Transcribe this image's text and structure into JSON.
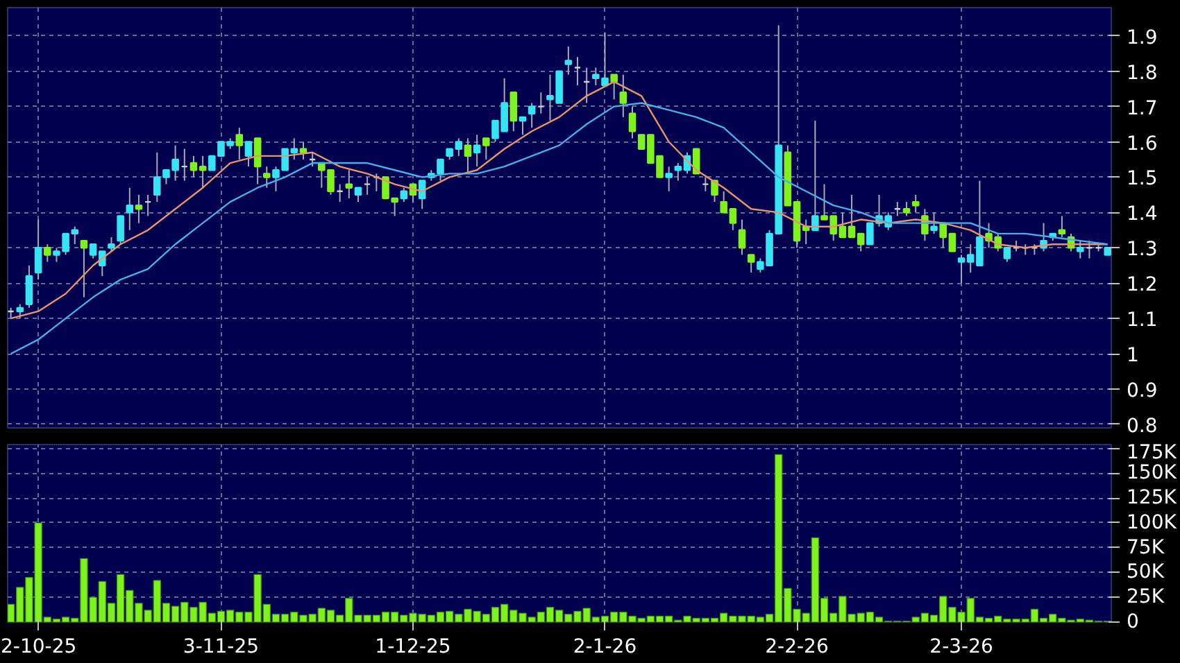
{
  "chart_data": [
    {
      "type": "candlestick",
      "tick_labels": "y",
      "grid": true,
      "ylim": [
        0.79,
        1.98
      ],
      "yticks": [
        0.8,
        0.9,
        1,
        1.1,
        1.2,
        1.3,
        1.4,
        1.5,
        1.6,
        1.7,
        1.8,
        1.9
      ],
      "categories": [
        null,
        null,
        null,
        null,
        null,
        null,
        null,
        null,
        null,
        null,
        null,
        null,
        null,
        null,
        null,
        null,
        null,
        null,
        null,
        null,
        null,
        null,
        null,
        null,
        null,
        null,
        null,
        null,
        null,
        null,
        null,
        null,
        null,
        null,
        null,
        null,
        null,
        null,
        null,
        null,
        null,
        null,
        null,
        null,
        null,
        null,
        null,
        null,
        null,
        null,
        null,
        null,
        null,
        null,
        null,
        null,
        null,
        null,
        null,
        null,
        null,
        null,
        null,
        null,
        null,
        null,
        null,
        null,
        null,
        null,
        null,
        null,
        null,
        null,
        null,
        null,
        null,
        null,
        null,
        null,
        null,
        null,
        null,
        null,
        null,
        null,
        null,
        null,
        null,
        null,
        null,
        null,
        null,
        null,
        null,
        null,
        null,
        null,
        null,
        null,
        null,
        null,
        null,
        null,
        null,
        null,
        null,
        null,
        null,
        null,
        null,
        null,
        null,
        null,
        null,
        null,
        null,
        null,
        null,
        null,
        null
      ],
      "ohlc": [
        [
          1.12,
          1.13,
          1.1,
          1.12
        ],
        [
          1.12,
          1.14,
          1.1,
          1.13
        ],
        [
          1.14,
          1.25,
          1.13,
          1.22
        ],
        [
          1.23,
          1.38,
          1.21,
          1.3
        ],
        [
          1.3,
          1.31,
          1.26,
          1.28
        ],
        [
          1.28,
          1.3,
          1.26,
          1.29
        ],
        [
          1.29,
          1.34,
          1.28,
          1.34
        ],
        [
          1.34,
          1.36,
          1.31,
          1.35
        ],
        [
          1.32,
          1.32,
          1.16,
          1.3
        ],
        [
          1.28,
          1.31,
          1.27,
          1.31
        ],
        [
          1.25,
          1.29,
          1.22,
          1.29
        ],
        [
          1.3,
          1.33,
          1.29,
          1.31
        ],
        [
          1.32,
          1.39,
          1.31,
          1.39
        ],
        [
          1.4,
          1.47,
          1.35,
          1.42
        ],
        [
          1.42,
          1.45,
          1.37,
          1.41
        ],
        [
          1.43,
          1.45,
          1.39,
          1.43
        ],
        [
          1.45,
          1.57,
          1.43,
          1.5
        ],
        [
          1.5,
          1.52,
          1.48,
          1.52
        ],
        [
          1.52,
          1.59,
          1.49,
          1.55
        ],
        [
          1.53,
          1.58,
          1.49,
          1.53
        ],
        [
          1.54,
          1.56,
          1.5,
          1.52
        ],
        [
          1.53,
          1.56,
          1.47,
          1.52
        ],
        [
          1.52,
          1.56,
          1.52,
          1.56
        ],
        [
          1.56,
          1.6,
          1.56,
          1.6
        ],
        [
          1.59,
          1.61,
          1.58,
          1.6
        ],
        [
          1.62,
          1.64,
          1.55,
          1.59
        ],
        [
          1.56,
          1.6,
          1.53,
          1.6
        ],
        [
          1.61,
          1.61,
          1.48,
          1.53
        ],
        [
          1.51,
          1.53,
          1.47,
          1.5
        ],
        [
          1.5,
          1.53,
          1.46,
          1.52
        ],
        [
          1.52,
          1.58,
          1.52,
          1.58
        ],
        [
          1.57,
          1.61,
          1.55,
          1.58
        ],
        [
          1.58,
          1.6,
          1.55,
          1.57
        ],
        [
          1.55,
          1.57,
          1.53,
          1.55
        ],
        [
          1.54,
          1.54,
          1.47,
          1.52
        ],
        [
          1.52,
          1.52,
          1.45,
          1.46
        ],
        [
          1.46,
          1.48,
          1.43,
          1.46
        ],
        [
          1.48,
          1.52,
          1.44,
          1.47
        ],
        [
          1.45,
          1.47,
          1.43,
          1.47
        ],
        [
          1.48,
          1.5,
          1.45,
          1.48
        ],
        [
          1.5,
          1.51,
          1.46,
          1.5
        ],
        [
          1.5,
          1.5,
          1.44,
          1.44
        ],
        [
          1.44,
          1.44,
          1.39,
          1.43
        ],
        [
          1.44,
          1.47,
          1.43,
          1.46
        ],
        [
          1.48,
          1.48,
          1.43,
          1.45
        ],
        [
          1.44,
          1.49,
          1.41,
          1.49
        ],
        [
          1.5,
          1.52,
          1.49,
          1.51
        ],
        [
          1.51,
          1.55,
          1.49,
          1.55
        ],
        [
          1.56,
          1.58,
          1.55,
          1.58
        ],
        [
          1.58,
          1.61,
          1.56,
          1.6
        ],
        [
          1.59,
          1.61,
          1.51,
          1.56
        ],
        [
          1.57,
          1.62,
          1.53,
          1.59
        ],
        [
          1.61,
          1.61,
          1.55,
          1.59
        ],
        [
          1.61,
          1.66,
          1.6,
          1.66
        ],
        [
          1.63,
          1.78,
          1.63,
          1.71
        ],
        [
          1.74,
          1.74,
          1.63,
          1.66
        ],
        [
          1.66,
          1.67,
          1.62,
          1.67
        ],
        [
          1.68,
          1.71,
          1.64,
          1.7
        ],
        [
          1.7,
          1.74,
          1.68,
          1.7
        ],
        [
          1.72,
          1.79,
          1.66,
          1.73
        ],
        [
          1.71,
          1.8,
          1.71,
          1.8
        ],
        [
          1.82,
          1.87,
          1.79,
          1.83
        ],
        [
          1.81,
          1.84,
          1.76,
          1.81
        ],
        [
          1.77,
          1.81,
          1.71,
          1.77
        ],
        [
          1.78,
          1.81,
          1.76,
          1.79
        ],
        [
          1.76,
          1.91,
          1.76,
          1.78
        ],
        [
          1.79,
          1.79,
          1.72,
          1.77
        ],
        [
          1.74,
          1.79,
          1.67,
          1.71
        ],
        [
          1.68,
          1.7,
          1.61,
          1.63
        ],
        [
          1.62,
          1.62,
          1.58,
          1.58
        ],
        [
          1.62,
          1.62,
          1.54,
          1.54
        ],
        [
          1.56,
          1.56,
          1.5,
          1.5
        ],
        [
          1.5,
          1.53,
          1.46,
          1.51
        ],
        [
          1.52,
          1.54,
          1.49,
          1.53
        ],
        [
          1.52,
          1.57,
          1.51,
          1.56
        ],
        [
          1.58,
          1.58,
          1.51,
          1.51
        ],
        [
          1.48,
          1.5,
          1.46,
          1.48
        ],
        [
          1.49,
          1.49,
          1.43,
          1.45
        ],
        [
          1.43,
          1.46,
          1.4,
          1.4
        ],
        [
          1.41,
          1.41,
          1.35,
          1.37
        ],
        [
          1.35,
          1.38,
          1.28,
          1.3
        ],
        [
          1.28,
          1.28,
          1.23,
          1.26
        ],
        [
          1.24,
          1.27,
          1.23,
          1.26
        ],
        [
          1.25,
          1.35,
          1.25,
          1.34
        ],
        [
          1.34,
          1.93,
          1.34,
          1.59
        ],
        [
          1.57,
          1.59,
          1.42,
          1.42
        ],
        [
          1.43,
          1.43,
          1.3,
          1.32
        ],
        [
          1.36,
          1.38,
          1.31,
          1.35
        ],
        [
          1.35,
          1.66,
          1.35,
          1.39
        ],
        [
          1.39,
          1.48,
          1.38,
          1.38
        ],
        [
          1.39,
          1.39,
          1.32,
          1.34
        ],
        [
          1.36,
          1.4,
          1.33,
          1.33
        ],
        [
          1.36,
          1.45,
          1.33,
          1.33
        ],
        [
          1.34,
          1.34,
          1.29,
          1.31
        ],
        [
          1.31,
          1.37,
          1.31,
          1.37
        ],
        [
          1.37,
          1.45,
          1.36,
          1.39
        ],
        [
          1.36,
          1.4,
          1.35,
          1.39
        ],
        [
          1.41,
          1.43,
          1.39,
          1.41
        ],
        [
          1.41,
          1.43,
          1.39,
          1.4
        ],
        [
          1.43,
          1.45,
          1.4,
          1.42
        ],
        [
          1.39,
          1.41,
          1.32,
          1.34
        ],
        [
          1.35,
          1.4,
          1.34,
          1.36
        ],
        [
          1.37,
          1.37,
          1.3,
          1.33
        ],
        [
          1.34,
          1.34,
          1.29,
          1.29
        ],
        [
          1.26,
          1.28,
          1.2,
          1.27
        ],
        [
          1.26,
          1.31,
          1.23,
          1.28
        ],
        [
          1.25,
          1.49,
          1.25,
          1.33
        ],
        [
          1.34,
          1.37,
          1.3,
          1.32
        ],
        [
          1.33,
          1.34,
          1.29,
          1.3
        ],
        [
          1.27,
          1.3,
          1.26,
          1.3
        ],
        [
          1.3,
          1.32,
          1.29,
          1.3
        ],
        [
          1.3,
          1.31,
          1.28,
          1.3
        ],
        [
          1.3,
          1.31,
          1.28,
          1.3
        ],
        [
          1.3,
          1.37,
          1.29,
          1.32
        ],
        [
          1.33,
          1.34,
          1.32,
          1.34
        ],
        [
          1.35,
          1.39,
          1.33,
          1.34
        ],
        [
          1.33,
          1.34,
          1.29,
          1.3
        ],
        [
          1.29,
          1.32,
          1.27,
          1.3
        ],
        [
          1.3,
          1.32,
          1.27,
          1.3
        ],
        [
          1.3,
          1.31,
          1.29,
          1.3
        ],
        [
          1.28,
          1.3,
          1.28,
          1.3
        ]
      ],
      "series": [
        {
          "type": "line",
          "color": "#e8956a",
          "values": [
            1.1,
            null,
            null,
            1.12,
            null,
            null,
            1.17,
            null,
            null,
            1.25,
            null,
            null,
            1.31,
            null,
            null,
            1.35,
            null,
            null,
            1.41,
            null,
            null,
            1.47,
            null,
            null,
            1.54,
            null,
            null,
            1.56,
            null,
            null,
            1.56,
            null,
            null,
            1.57,
            null,
            null,
            1.53,
            null,
            null,
            1.51,
            null,
            null,
            1.48,
            null,
            null,
            1.46,
            null,
            null,
            1.5,
            null,
            null,
            1.52,
            null,
            null,
            1.58,
            null,
            null,
            1.63,
            null,
            null,
            1.67,
            null,
            null,
            1.73,
            null,
            null,
            1.77,
            null,
            null,
            1.73,
            null,
            null,
            1.6,
            null,
            null,
            1.52,
            null,
            null,
            1.47,
            null,
            null,
            1.41,
            null,
            null,
            1.4,
            null,
            null,
            1.36,
            null,
            null,
            1.36,
            null,
            null,
            1.38,
            null,
            null,
            1.37,
            null,
            null,
            1.38,
            null,
            null,
            1.37,
            null,
            null,
            1.35,
            null,
            null,
            1.31,
            null,
            null,
            1.3,
            null,
            null,
            1.31,
            null,
            null,
            1.31,
            null,
            null,
            1.31
          ]
        },
        {
          "type": "line",
          "color": "#4aaee8",
          "values": [
            1.0,
            null,
            null,
            1.04,
            null,
            null,
            1.1,
            null,
            null,
            1.16,
            null,
            null,
            1.21,
            null,
            null,
            1.24,
            null,
            null,
            1.31,
            null,
            null,
            1.37,
            null,
            null,
            1.43,
            null,
            null,
            1.47,
            null,
            null,
            1.5,
            null,
            null,
            1.54,
            null,
            null,
            1.54,
            null,
            null,
            1.54,
            null,
            null,
            1.52,
            null,
            null,
            1.5,
            null,
            null,
            1.51,
            null,
            null,
            1.51,
            null,
            null,
            1.53,
            null,
            null,
            1.56,
            null,
            null,
            1.59,
            null,
            null,
            1.65,
            null,
            null,
            1.7,
            null,
            null,
            1.71,
            null,
            null,
            1.69,
            null,
            null,
            1.67,
            null,
            null,
            1.64,
            null,
            null,
            1.57,
            null,
            null,
            1.5,
            null,
            null,
            1.46,
            null,
            null,
            1.42,
            null,
            null,
            1.4,
            null,
            null,
            1.37,
            null,
            null,
            1.37,
            null,
            null,
            1.37,
            null,
            null,
            1.37,
            null,
            null,
            1.34,
            null,
            null,
            1.34,
            null,
            null,
            1.33,
            null,
            null,
            1.32,
            null,
            null,
            1.31
          ]
        }
      ]
    },
    {
      "type": "bar",
      "grid": true,
      "color": "#7ff21e",
      "ylim": [
        0,
        179
      ],
      "yticks": [
        0,
        {
          "value": 25,
          "label": "25K"
        },
        {
          "value": 50,
          "label": "50K"
        },
        {
          "value": 75,
          "label": "75K"
        },
        {
          "value": 100,
          "label": "100K"
        },
        {
          "value": 125,
          "label": "125K"
        },
        {
          "value": 150,
          "label": "150K"
        },
        {
          "value": 175,
          "label": "175K"
        }
      ],
      "categories": [
        null,
        null,
        null,
        "2-10-25",
        null,
        null,
        null,
        null,
        null,
        null,
        null,
        null,
        null,
        null,
        null,
        null,
        null,
        null,
        null,
        null,
        null,
        null,
        null,
        "3-11-25",
        null,
        null,
        null,
        null,
        null,
        null,
        null,
        null,
        null,
        null,
        null,
        null,
        null,
        null,
        null,
        null,
        null,
        null,
        null,
        null,
        "1-12-25",
        null,
        null,
        null,
        null,
        null,
        null,
        null,
        null,
        null,
        null,
        null,
        null,
        null,
        null,
        null,
        null,
        null,
        null,
        null,
        null,
        "2-1-26",
        null,
        null,
        null,
        null,
        null,
        null,
        null,
        null,
        null,
        null,
        null,
        null,
        null,
        null,
        null,
        null,
        null,
        null,
        null,
        null,
        "2-2-26",
        null,
        null,
        null,
        null,
        null,
        null,
        null,
        null,
        null,
        null,
        null,
        null,
        null,
        null,
        null,
        null,
        null,
        "2-3-26",
        null,
        null,
        null,
        null,
        null,
        null,
        null,
        null,
        null,
        null,
        null,
        null,
        null,
        null,
        null,
        null
      ],
      "values": [
        18,
        35,
        45,
        100,
        5,
        3,
        5,
        4,
        64,
        25,
        41,
        19,
        48,
        32,
        19,
        12,
        42,
        19,
        16,
        20,
        15,
        20,
        9,
        11,
        12,
        10,
        10,
        48,
        18,
        8,
        8,
        10,
        7,
        8,
        14,
        12,
        7,
        24,
        7,
        7,
        7,
        10,
        10,
        7,
        9,
        8,
        7,
        10,
        11,
        8,
        13,
        11,
        8,
        15,
        18,
        12,
        9,
        5,
        10,
        15,
        12,
        8,
        11,
        14,
        5,
        6,
        10,
        10,
        6,
        4,
        6,
        6,
        6,
        2,
        6,
        4,
        4,
        4,
        9,
        6,
        6,
        6,
        5,
        8,
        169,
        34,
        13,
        9,
        85,
        24,
        9,
        26,
        8,
        9,
        10,
        5,
        1,
        1,
        1,
        5,
        9,
        7,
        26,
        15,
        10,
        24,
        5,
        4,
        6,
        3,
        3,
        3,
        13,
        4,
        8,
        4,
        2,
        3,
        2,
        1,
        1
      ]
    }
  ]
}
